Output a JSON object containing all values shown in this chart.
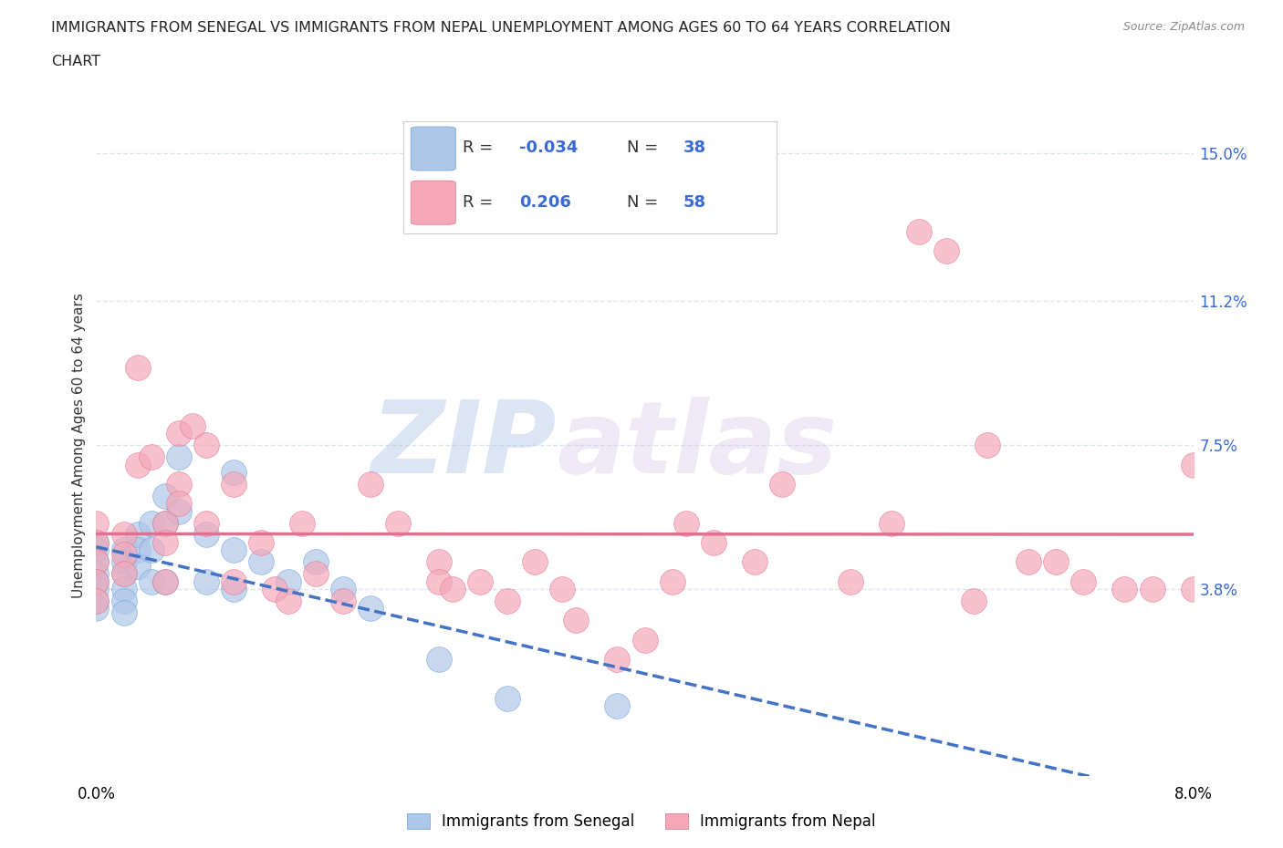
{
  "title_line1": "IMMIGRANTS FROM SENEGAL VS IMMIGRANTS FROM NEPAL UNEMPLOYMENT AMONG AGES 60 TO 64 YEARS CORRELATION",
  "title_line2": "CHART",
  "source": "Source: ZipAtlas.com",
  "ylabel": "Unemployment Among Ages 60 to 64 years",
  "xlim": [
    0.0,
    0.08
  ],
  "ylim": [
    -0.01,
    0.16
  ],
  "xticks": [
    0.0,
    0.02,
    0.04,
    0.06,
    0.08
  ],
  "xtick_labels": [
    "0.0%",
    "",
    "",
    "",
    "8.0%"
  ],
  "ytick_labels_right": [
    "3.8%",
    "7.5%",
    "11.2%",
    "15.0%"
  ],
  "ytick_vals_right": [
    0.038,
    0.075,
    0.112,
    0.15
  ],
  "senegal_R": -0.034,
  "senegal_N": 38,
  "nepal_R": 0.206,
  "nepal_N": 58,
  "senegal_color": "#aec6e8",
  "nepal_color": "#f4a8b8",
  "senegal_edge_color": "#6a9fd8",
  "nepal_edge_color": "#e07090",
  "senegal_line_color": "#4472c4",
  "nepal_line_color": "#e07090",
  "R_N_color": "#3a6ad4",
  "watermark_color": "#ccddf5",
  "grid_color": "#d8e4f0",
  "senegal_x": [
    0.0,
    0.0,
    0.0,
    0.0,
    0.0,
    0.0,
    0.0,
    0.0,
    0.002,
    0.002,
    0.002,
    0.002,
    0.002,
    0.002,
    0.003,
    0.003,
    0.003,
    0.004,
    0.004,
    0.004,
    0.005,
    0.005,
    0.005,
    0.006,
    0.006,
    0.008,
    0.008,
    0.01,
    0.01,
    0.01,
    0.012,
    0.014,
    0.016,
    0.018,
    0.02,
    0.025,
    0.03,
    0.038
  ],
  "senegal_y": [
    0.05,
    0.048,
    0.045,
    0.042,
    0.04,
    0.038,
    0.035,
    0.033,
    0.048,
    0.045,
    0.042,
    0.038,
    0.035,
    0.032,
    0.052,
    0.048,
    0.044,
    0.055,
    0.048,
    0.04,
    0.062,
    0.055,
    0.04,
    0.072,
    0.058,
    0.052,
    0.04,
    0.068,
    0.048,
    0.038,
    0.045,
    0.04,
    0.045,
    0.038,
    0.033,
    0.02,
    0.01,
    0.008
  ],
  "nepal_x": [
    0.0,
    0.0,
    0.0,
    0.0,
    0.0,
    0.002,
    0.002,
    0.002,
    0.003,
    0.003,
    0.004,
    0.005,
    0.005,
    0.005,
    0.006,
    0.006,
    0.006,
    0.007,
    0.008,
    0.008,
    0.01,
    0.01,
    0.012,
    0.013,
    0.014,
    0.015,
    0.016,
    0.018,
    0.02,
    0.022,
    0.025,
    0.025,
    0.026,
    0.028,
    0.03,
    0.032,
    0.034,
    0.035,
    0.038,
    0.04,
    0.042,
    0.043,
    0.045,
    0.048,
    0.05,
    0.055,
    0.058,
    0.06,
    0.062,
    0.064,
    0.065,
    0.068,
    0.07,
    0.072,
    0.075,
    0.077,
    0.08,
    0.08
  ],
  "nepal_y": [
    0.055,
    0.05,
    0.045,
    0.04,
    0.035,
    0.052,
    0.047,
    0.042,
    0.095,
    0.07,
    0.072,
    0.055,
    0.05,
    0.04,
    0.078,
    0.065,
    0.06,
    0.08,
    0.075,
    0.055,
    0.065,
    0.04,
    0.05,
    0.038,
    0.035,
    0.055,
    0.042,
    0.035,
    0.065,
    0.055,
    0.045,
    0.04,
    0.038,
    0.04,
    0.035,
    0.045,
    0.038,
    0.03,
    0.02,
    0.025,
    0.04,
    0.055,
    0.05,
    0.045,
    0.065,
    0.04,
    0.055,
    0.13,
    0.125,
    0.035,
    0.075,
    0.045,
    0.045,
    0.04,
    0.038,
    0.038,
    0.07,
    0.038
  ]
}
